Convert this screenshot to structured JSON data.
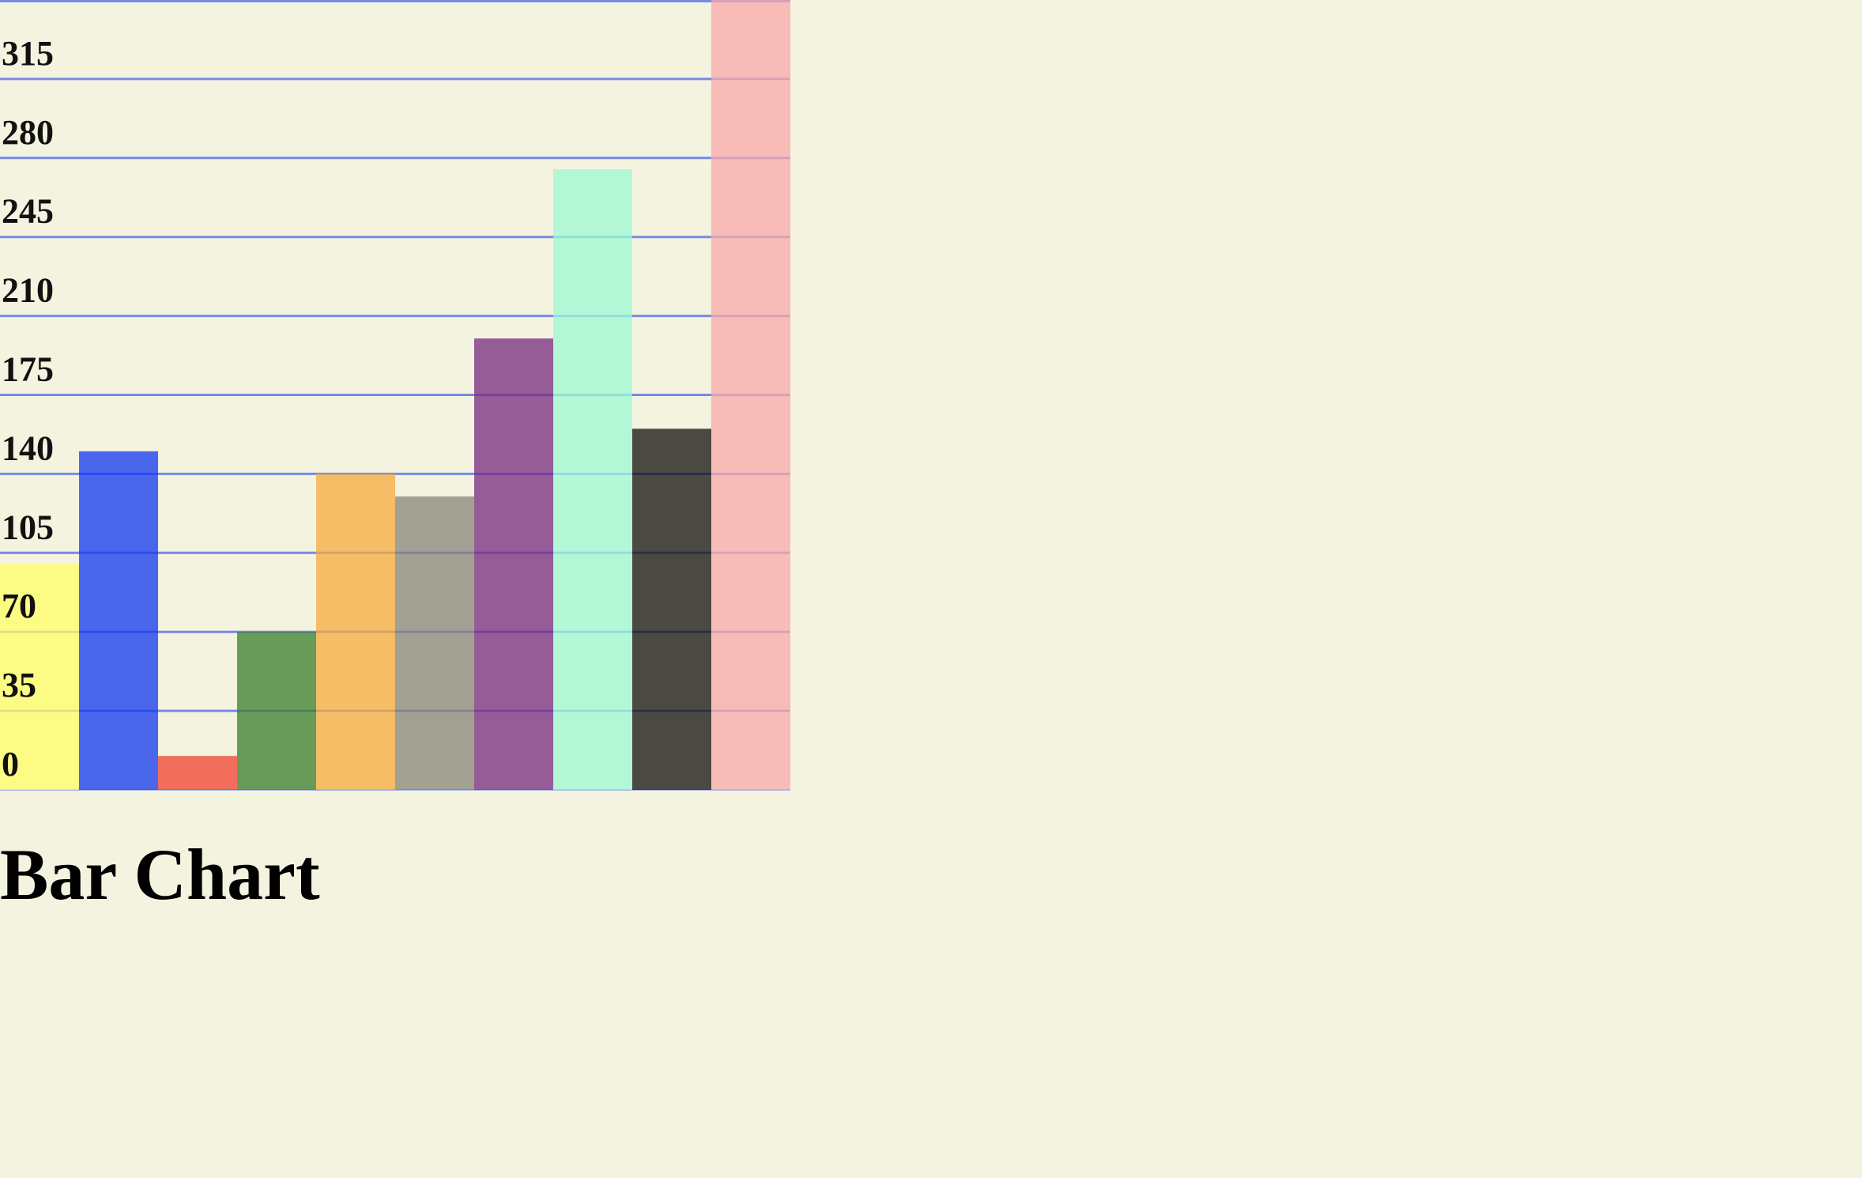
{
  "page": {
    "title": "Bar Chart",
    "background": "#f4f3df"
  },
  "chart_data": {
    "type": "bar",
    "title": "Bar Chart",
    "xlabel": "",
    "ylabel": "",
    "ylim": [
      0,
      350
    ],
    "y_ticks": [
      0,
      35,
      70,
      105,
      140,
      175,
      210,
      245,
      280,
      315
    ],
    "grid": true,
    "grid_color": "#5f78e8",
    "label_color": "#111111",
    "bar_opacity": 0.75,
    "bars": [
      {
        "value": 100,
        "color": "#ffff66"
      },
      {
        "value": 150,
        "color": "#1238f0"
      },
      {
        "value": 15,
        "color": "#f04030"
      },
      {
        "value": 70,
        "color": "#3a7d2c"
      },
      {
        "value": 140,
        "color": "#f5ab3d"
      },
      {
        "value": 130,
        "color": "#868478"
      },
      {
        "value": 200,
        "color": "#772a80"
      },
      {
        "value": 275,
        "color": "#9cfad3"
      },
      {
        "value": 160,
        "color": "#12110f"
      },
      {
        "value": 350,
        "color": "#f8aaaa"
      }
    ]
  }
}
